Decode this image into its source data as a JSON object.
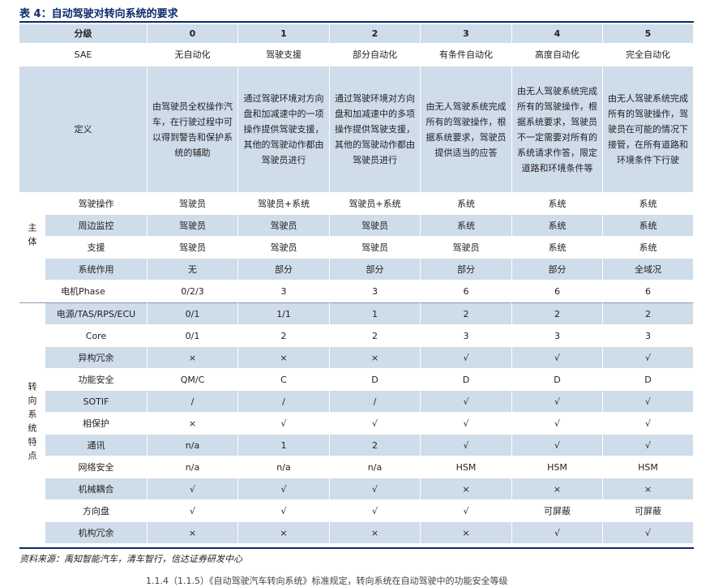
{
  "title": "表 4：自动驾驶对转向系统的要求",
  "header": {
    "label": "分级",
    "levels": [
      "0",
      "1",
      "2",
      "3",
      "4",
      "5"
    ]
  },
  "sae": {
    "label": "SAE",
    "values": [
      "无自动化",
      "驾驶支援",
      "部分自动化",
      "有条件自动化",
      "高度自动化",
      "完全自动化"
    ]
  },
  "definition": {
    "label": "定义",
    "values": [
      "由驾驶员全权操作汽车，在行驶过程中可以得到警告和保护系统的辅助",
      "通过驾驶环境对方向盘和加减速中的一项操作提供驾驶支援，其他的驾驶动作都由驾驶员进行",
      "通过驾驶环境对方向盘和加减速中的多项操作提供驾驶支援，其他的驾驶动作都由驾驶员进行",
      "由无人驾驶系统完成所有的驾驶操作，根据系统要求，驾驶员提供适当的应答",
      "由无人驾驶系统完成所有的驾驶操作，根据系统要求，驾驶员不一定需要对所有的系统请求作答，限定道路和环境条件等",
      "由无人驾驶系统完成所有的驾驶操作，驾驶员在可能的情况下接管，在所有道路和环境条件下行驶"
    ]
  },
  "group_main": {
    "label": "主体",
    "rows": [
      {
        "label": "驾驶操作",
        "values": [
          "驾驶员",
          "驾驶员+系统",
          "驾驶员+系统",
          "系统",
          "系统",
          "系统"
        ]
      },
      {
        "label": "周边监控",
        "values": [
          "驾驶员",
          "驾驶员",
          "驾驶员",
          "系统",
          "系统",
          "系统"
        ]
      },
      {
        "label": "支援",
        "values": [
          "驾驶员",
          "驾驶员",
          "驾驶员",
          "驾驶员",
          "系统",
          "系统"
        ]
      },
      {
        "label": "系统作用",
        "values": [
          "无",
          "部分",
          "部分",
          "部分",
          "部分",
          "全域况"
        ]
      }
    ]
  },
  "motor": {
    "label": "电机Phase",
    "values": [
      "0/2/3",
      "3",
      "3",
      "6",
      "6",
      "6"
    ]
  },
  "group_steer": {
    "label": "转向系统特点",
    "rows": [
      {
        "label": "电源/TAS/RPS/ECU",
        "values": [
          "0/1",
          "1/1",
          "1",
          "2",
          "2",
          "2"
        ]
      },
      {
        "label": "Core",
        "values": [
          "0/1",
          "2",
          "2",
          "3",
          "3",
          "3"
        ]
      },
      {
        "label": "异构冗余",
        "values": [
          "×",
          "×",
          "×",
          "√",
          "√",
          "√"
        ]
      },
      {
        "label": "功能安全",
        "values": [
          "QM/C",
          "C",
          "D",
          "D",
          "D",
          "D"
        ]
      },
      {
        "label": "SOTIF",
        "values": [
          "/",
          "/",
          "/",
          "√",
          "√",
          "√"
        ]
      },
      {
        "label": "相保护",
        "values": [
          "×",
          "√",
          "√",
          "√",
          "√",
          "√"
        ]
      },
      {
        "label": "通讯",
        "values": [
          "n/a",
          "1",
          "2",
          "√",
          "√",
          "√"
        ]
      },
      {
        "label": "网络安全",
        "values": [
          "n/a",
          "n/a",
          "n/a",
          "HSM",
          "HSM",
          "HSM"
        ]
      },
      {
        "label": "机械耦合",
        "values": [
          "√",
          "√",
          "√",
          "×",
          "×",
          "×"
        ]
      },
      {
        "label": "方向盘",
        "values": [
          "√",
          "√",
          "√",
          "√",
          "可屏蔽",
          "可屏蔽"
        ]
      },
      {
        "label": "机构冗余",
        "values": [
          "×",
          "×",
          "×",
          "×",
          "√",
          "√"
        ]
      }
    ]
  },
  "source": "资料来源：禹知智能汽车，清车智行，信达证券研发中心",
  "cutoff_text": "1.1.4（1.1.5）《自动驾驶汽车转向系统》标准规定，转向系统在自动驾驶中的功能安全等级"
}
